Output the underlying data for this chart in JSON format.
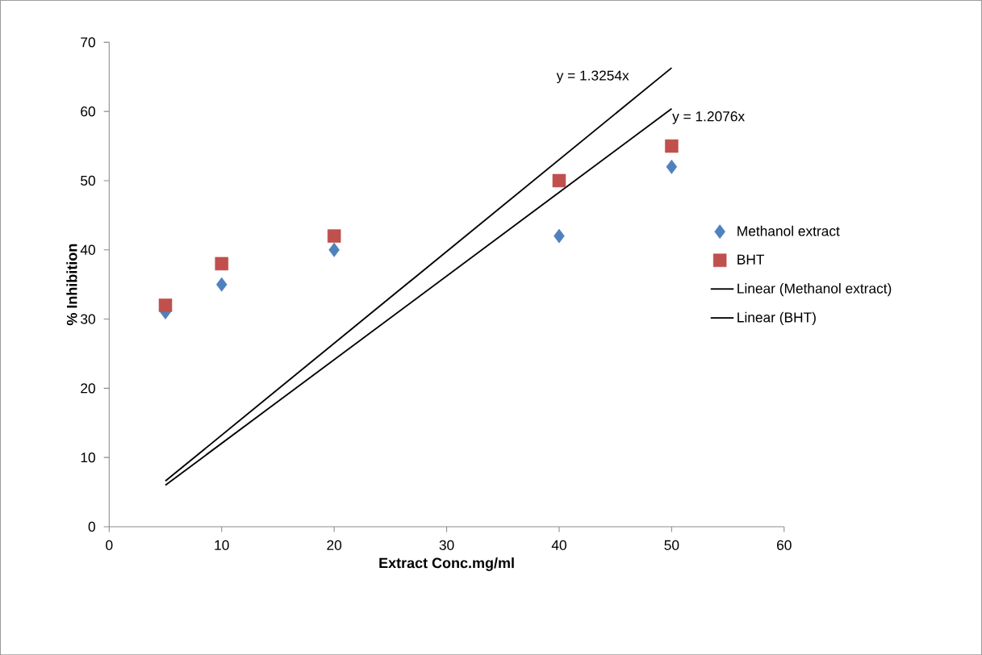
{
  "chart_data": {
    "type": "scatter",
    "xlabel": "Extract Conc.mg/ml",
    "ylabel": "% Inhibition",
    "xlim": [
      0,
      60
    ],
    "xticks": [
      0,
      10,
      20,
      30,
      40,
      50,
      60
    ],
    "ylim": [
      0,
      70
    ],
    "yticks": [
      0,
      10,
      20,
      30,
      40,
      50,
      60,
      70
    ],
    "grid": false,
    "legend": "right",
    "series": [
      {
        "name": "Methanol extract",
        "marker": "diamond",
        "color": "#4f81bd",
        "x": [
          5,
          10,
          20,
          40,
          50
        ],
        "values": [
          31,
          35,
          40,
          42,
          52
        ]
      },
      {
        "name": "BHT",
        "marker": "square",
        "color": "#c0504d",
        "x": [
          5,
          10,
          20,
          40,
          50
        ],
        "values": [
          32,
          38,
          42,
          50,
          55
        ]
      },
      {
        "name": "Linear (Methanol extract)",
        "type": "line",
        "marker": "none",
        "line_style": "solid",
        "color": "#000000",
        "x": [
          5,
          50
        ],
        "values": [
          6.0,
          60.4
        ]
      },
      {
        "name": "Linear (BHT)",
        "type": "line",
        "marker": "none",
        "line_style": "solid",
        "color": "#000000",
        "x": [
          5,
          50
        ],
        "values": [
          6.6,
          66.3
        ]
      }
    ],
    "annotations": [
      "y = 1.3254x",
      "y = 1.2076x"
    ]
  }
}
